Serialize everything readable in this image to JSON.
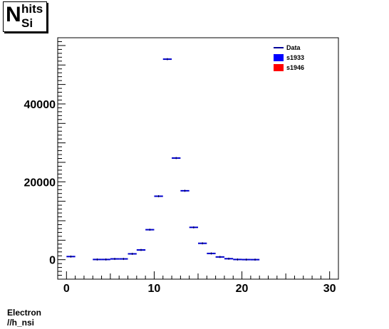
{
  "title": {
    "main": "N",
    "superscript": "hits",
    "subscript": "Si"
  },
  "footer": {
    "line1": "Electron",
    "line2": "//h_nsi"
  },
  "chart_data": {
    "type": "histogram",
    "xlim": [
      -1,
      31
    ],
    "ylim": [
      -5000,
      57000
    ],
    "x_ticks": [
      0,
      10,
      20,
      30
    ],
    "y_ticks": [
      0,
      20000,
      40000
    ],
    "x_tick_labels": [
      "0",
      "10",
      "20",
      "30"
    ],
    "y_tick_labels": [
      "0",
      "20000",
      "40000"
    ],
    "legend": {
      "position": "top-right",
      "entries": [
        {
          "label": "Data",
          "color": "#000099",
          "style": "line"
        },
        {
          "label": "s1933",
          "color": "#0000ff",
          "style": "fill"
        },
        {
          "label": "s1946",
          "color": "#ff0000",
          "style": "fill"
        }
      ]
    },
    "bin_width": 1,
    "bins": [
      {
        "x0": 0,
        "y": 800
      },
      {
        "x0": 3,
        "y": 50
      },
      {
        "x0": 4,
        "y": 50
      },
      {
        "x0": 5,
        "y": 200
      },
      {
        "x0": 6,
        "y": 200
      },
      {
        "x0": 7,
        "y": 1500
      },
      {
        "x0": 8,
        "y": 2500
      },
      {
        "x0": 9,
        "y": 7700
      },
      {
        "x0": 10,
        "y": 16300
      },
      {
        "x0": 11,
        "y": 51500
      },
      {
        "x0": 12,
        "y": 26100
      },
      {
        "x0": 13,
        "y": 17700
      },
      {
        "x0": 14,
        "y": 8300
      },
      {
        "x0": 15,
        "y": 4200
      },
      {
        "x0": 16,
        "y": 1600
      },
      {
        "x0": 17,
        "y": 700
      },
      {
        "x0": 18,
        "y": 250
      },
      {
        "x0": 19,
        "y": 50
      },
      {
        "x0": 20,
        "y": 20
      },
      {
        "x0": 21,
        "y": 10
      }
    ]
  }
}
